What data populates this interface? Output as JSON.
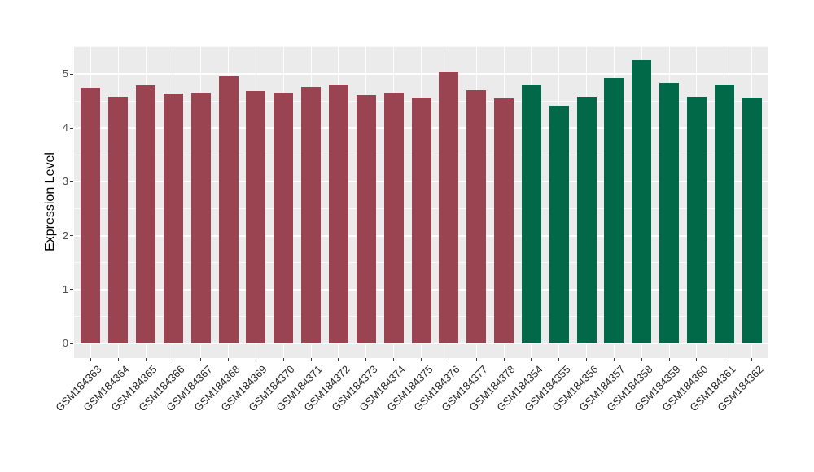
{
  "chart_data": {
    "type": "bar",
    "title": "",
    "xlabel": "",
    "ylabel": "Expression Level",
    "ylim": [
      0,
      5.53
    ],
    "yticks": [
      0,
      1,
      2,
      3,
      4,
      5
    ],
    "yminorticks": [
      0.5,
      1.5,
      2.5,
      3.5,
      4.5,
      5.5
    ],
    "grid": "on",
    "legend_position": "none",
    "panel_style": "gray-background-white-gridlines",
    "groups": {
      "red": "#9A4351",
      "green": "#026948"
    },
    "bars": [
      {
        "label": "GSM184363",
        "value": 4.74,
        "group": "red"
      },
      {
        "label": "GSM184364",
        "value": 4.58,
        "group": "red"
      },
      {
        "label": "GSM184365",
        "value": 4.79,
        "group": "red"
      },
      {
        "label": "GSM184366",
        "value": 4.64,
        "group": "red"
      },
      {
        "label": "GSM184367",
        "value": 4.66,
        "group": "red"
      },
      {
        "label": "GSM184368",
        "value": 4.95,
        "group": "red"
      },
      {
        "label": "GSM184369",
        "value": 4.69,
        "group": "red"
      },
      {
        "label": "GSM184370",
        "value": 4.65,
        "group": "red"
      },
      {
        "label": "GSM184371",
        "value": 4.76,
        "group": "red"
      },
      {
        "label": "GSM184372",
        "value": 4.8,
        "group": "red"
      },
      {
        "label": "GSM184373",
        "value": 4.6,
        "group": "red"
      },
      {
        "label": "GSM184374",
        "value": 4.66,
        "group": "red"
      },
      {
        "label": "GSM184375",
        "value": 4.56,
        "group": "red"
      },
      {
        "label": "GSM184376",
        "value": 5.05,
        "group": "red"
      },
      {
        "label": "GSM184377",
        "value": 4.7,
        "group": "red"
      },
      {
        "label": "GSM184378",
        "value": 4.54,
        "group": "red"
      },
      {
        "label": "GSM184354",
        "value": 4.8,
        "group": "green"
      },
      {
        "label": "GSM184355",
        "value": 4.41,
        "group": "green"
      },
      {
        "label": "GSM184356",
        "value": 4.57,
        "group": "green"
      },
      {
        "label": "GSM184357",
        "value": 4.92,
        "group": "green"
      },
      {
        "label": "GSM184358",
        "value": 5.25,
        "group": "green"
      },
      {
        "label": "GSM184359",
        "value": 4.83,
        "group": "green"
      },
      {
        "label": "GSM184360",
        "value": 4.57,
        "group": "green"
      },
      {
        "label": "GSM184361",
        "value": 4.81,
        "group": "green"
      },
      {
        "label": "GSM184362",
        "value": 4.56,
        "group": "green"
      }
    ]
  },
  "colors": {
    "panel_background": "#EBEBEB",
    "gridline": "#FFFFFF",
    "figure_background": "#FFFFFF",
    "bar_red": "#9A4351",
    "bar_green": "#026948",
    "y_tick_label": "#4D4D4D",
    "x_tick_label": "#262626",
    "axis_title": "#000000"
  }
}
